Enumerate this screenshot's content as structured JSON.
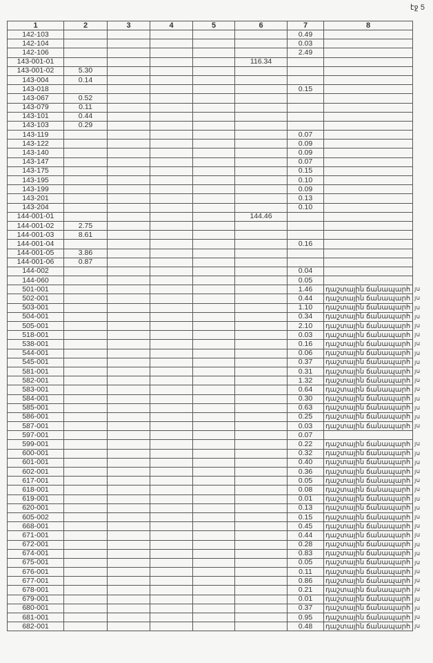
{
  "page_label": "էջ 5",
  "headers": [
    "1",
    "2",
    "3",
    "4",
    "5",
    "6",
    "7",
    "8"
  ],
  "margin_note": "յս",
  "rows": [
    [
      "142-103",
      "",
      "",
      "",
      "",
      "",
      "0.49",
      ""
    ],
    [
      "142-104",
      "",
      "",
      "",
      "",
      "",
      "0.03",
      ""
    ],
    [
      "142-106",
      "",
      "",
      "",
      "",
      "",
      "2.49",
      ""
    ],
    [
      "143-001-01",
      "",
      "",
      "",
      "",
      "116.34",
      "",
      ""
    ],
    [
      "143-001-02",
      "5.30",
      "",
      "",
      "",
      "",
      "",
      ""
    ],
    [
      "143-004",
      "0.14",
      "",
      "",
      "",
      "",
      "",
      ""
    ],
    [
      "143-018",
      "",
      "",
      "",
      "",
      "",
      "0.15",
      ""
    ],
    [
      "143-067",
      "0.52",
      "",
      "",
      "",
      "",
      "",
      ""
    ],
    [
      "143-079",
      "0.11",
      "",
      "",
      "",
      "",
      "",
      ""
    ],
    [
      "143-101",
      "0.44",
      "",
      "",
      "",
      "",
      "",
      ""
    ],
    [
      "143-103",
      "0.29",
      "",
      "",
      "",
      "",
      "",
      ""
    ],
    [
      "143-119",
      "",
      "",
      "",
      "",
      "",
      "0.07",
      ""
    ],
    [
      "143-122",
      "",
      "",
      "",
      "",
      "",
      "0.09",
      ""
    ],
    [
      "143-140",
      "",
      "",
      "",
      "",
      "",
      "0.09",
      ""
    ],
    [
      "143-147",
      "",
      "",
      "",
      "",
      "",
      "0.07",
      ""
    ],
    [
      "143-175",
      "",
      "",
      "",
      "",
      "",
      "0.15",
      ""
    ],
    [
      "143-195",
      "",
      "",
      "",
      "",
      "",
      "0.10",
      ""
    ],
    [
      "143-199",
      "",
      "",
      "",
      "",
      "",
      "0.09",
      ""
    ],
    [
      "143-201",
      "",
      "",
      "",
      "",
      "",
      "0.13",
      ""
    ],
    [
      "143-204",
      "",
      "",
      "",
      "",
      "",
      "0.10",
      ""
    ],
    [
      "144-001-01",
      "",
      "",
      "",
      "",
      "144.46",
      "",
      ""
    ],
    [
      "144-001-02",
      "2.75",
      "",
      "",
      "",
      "",
      "",
      ""
    ],
    [
      "144-001-03",
      "8.61",
      "",
      "",
      "",
      "",
      "",
      ""
    ],
    [
      "144-001-04",
      "",
      "",
      "",
      "",
      "",
      "0.16",
      ""
    ],
    [
      "144-001-05",
      "3.86",
      "",
      "",
      "",
      "",
      "",
      ""
    ],
    [
      "144-001-06",
      "0.87",
      "",
      "",
      "",
      "",
      "",
      ""
    ],
    [
      "144-002",
      "",
      "",
      "",
      "",
      "",
      "0.04",
      ""
    ],
    [
      "144-060",
      "",
      "",
      "",
      "",
      "",
      "0.05",
      ""
    ],
    [
      "501-001",
      "",
      "",
      "",
      "",
      "",
      "1.46",
      "դաշտային ճանապարհ"
    ],
    [
      "502-001",
      "",
      "",
      "",
      "",
      "",
      "0.44",
      "դաշտային ճանապարհ"
    ],
    [
      "503-001",
      "",
      "",
      "",
      "",
      "",
      "1.10",
      "դաշտային ճանապարհ"
    ],
    [
      "504-001",
      "",
      "",
      "",
      "",
      "",
      "0.34",
      "դաշտային ճանապարհ"
    ],
    [
      "505-001",
      "",
      "",
      "",
      "",
      "",
      "2.10",
      "դաշտային ճանապարհ"
    ],
    [
      "518-001",
      "",
      "",
      "",
      "",
      "",
      "0.03",
      "դաշտային ճանապարհ"
    ],
    [
      "538-001",
      "",
      "",
      "",
      "",
      "",
      "0.16",
      "դաշտային ճանապարհ"
    ],
    [
      "544-001",
      "",
      "",
      "",
      "",
      "",
      "0.06",
      "դաշտային ճանապարհ"
    ],
    [
      "545-001",
      "",
      "",
      "",
      "",
      "",
      "0.37",
      "դաշտային ճանապարհ"
    ],
    [
      "581-001",
      "",
      "",
      "",
      "",
      "",
      "0.31",
      "դաշտային ճանապարհ"
    ],
    [
      "582-001",
      "",
      "",
      "",
      "",
      "",
      "1.32",
      "դաշտային ճանապարհ"
    ],
    [
      "583-001",
      "",
      "",
      "",
      "",
      "",
      "0.64",
      "դաշտային ճանապարհ"
    ],
    [
      "584-001",
      "",
      "",
      "",
      "",
      "",
      "0.30",
      "դաշտային ճանապարհ"
    ],
    [
      "585-001",
      "",
      "",
      "",
      "",
      "",
      "0.63",
      "դաշտային ճանապարհ"
    ],
    [
      "586-001",
      "",
      "",
      "",
      "",
      "",
      "0.25",
      "դաշտային ճանապարհ"
    ],
    [
      "587-001",
      "",
      "",
      "",
      "",
      "",
      "0.03",
      "դաշտային ճանապարհ"
    ],
    [
      "597-001",
      "",
      "",
      "",
      "",
      "",
      "0.07",
      ""
    ],
    [
      "599-001",
      "",
      "",
      "",
      "",
      "",
      "0.22",
      "դաշտային ճանապարհ"
    ],
    [
      "600-001",
      "",
      "",
      "",
      "",
      "",
      "0.32",
      "դաշտային ճանապարհ"
    ],
    [
      "601-001",
      "",
      "",
      "",
      "",
      "",
      "0.40",
      "դաշտային ճանապարհ"
    ],
    [
      "602-001",
      "",
      "",
      "",
      "",
      "",
      "0.36",
      "դաշտային ճանապարհ"
    ],
    [
      "617-001",
      "",
      "",
      "",
      "",
      "",
      "0.05",
      "դաշտային ճանապարհ"
    ],
    [
      "618-001",
      "",
      "",
      "",
      "",
      "",
      "0.08",
      "դաշտային ճանապարհ"
    ],
    [
      "619-001",
      "",
      "",
      "",
      "",
      "",
      "0.01",
      "դաշտային ճանապարհ"
    ],
    [
      "620-001",
      "",
      "",
      "",
      "",
      "",
      "0.13",
      "դաշտային ճանապարհ"
    ],
    [
      "605-002",
      "",
      "",
      "",
      "",
      "",
      "0.15",
      "դաշտային ճանապարհ"
    ],
    [
      "668-001",
      "",
      "",
      "",
      "",
      "",
      "0.45",
      "դաշտային ճանապարհ"
    ],
    [
      "671-001",
      "",
      "",
      "",
      "",
      "",
      "0.44",
      "դաշտային ճանապարհ"
    ],
    [
      "672-001",
      "",
      "",
      "",
      "",
      "",
      "0.28",
      "դաշտային ճանապարհ"
    ],
    [
      "674-001",
      "",
      "",
      "",
      "",
      "",
      "0.83",
      "դաշտային ճանապարհ"
    ],
    [
      "675-001",
      "",
      "",
      "",
      "",
      "",
      "0.05",
      "դաշտային ճանապարհ"
    ],
    [
      "676-001",
      "",
      "",
      "",
      "",
      "",
      "0.11",
      "դաշտային ճանապարհ"
    ],
    [
      "677-001",
      "",
      "",
      "",
      "",
      "",
      "0.86",
      "դաշտային ճանապարհ"
    ],
    [
      "678-001",
      "",
      "",
      "",
      "",
      "",
      "0.21",
      "դաշտային ճանապարհ"
    ],
    [
      "679-001",
      "",
      "",
      "",
      "",
      "",
      "0.01",
      "դաշտային ճանապարհ"
    ],
    [
      "680-001",
      "",
      "",
      "",
      "",
      "",
      "0.37",
      "դաշտային ճանապարհ"
    ],
    [
      "681-001",
      "",
      "",
      "",
      "",
      "",
      "0.95",
      "դաշտային ճանապարհ"
    ],
    [
      "682-001",
      "",
      "",
      "",
      "",
      "",
      "0.48",
      "դաշտային ճանապարհ"
    ]
  ]
}
